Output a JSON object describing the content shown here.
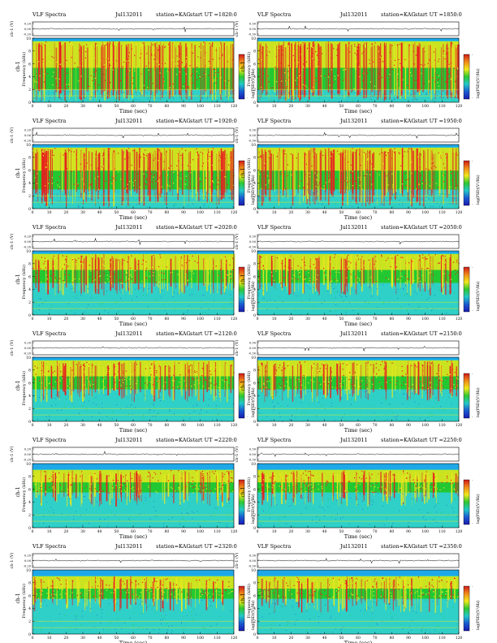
{
  "header": {
    "left_title": "VLF Spectra",
    "date_right_column": "Jul132011",
    "station": "station=KAG",
    "start_label": "start UT ="
  },
  "labels": {
    "waveform_ylabel": "ch-1 (V)",
    "spectrogram_ylabel_channel": "ch-1",
    "spectrogram_ylabel": "Frequency (kHz)",
    "xlabel": "Time (sec)",
    "colorbar_label": "log(PSD)(V²/Hz)"
  },
  "axes": {
    "time_ticks": [
      0,
      10,
      20,
      30,
      40,
      50,
      60,
      70,
      80,
      90,
      100,
      110,
      120
    ],
    "time_range": [
      0,
      120
    ],
    "freq_ticks": [
      0,
      2,
      4,
      6,
      8,
      10
    ],
    "freq_range": [
      0,
      10
    ],
    "waveform_ticks_left": [
      "0.20",
      "0.00",
      "-0.20"
    ],
    "waveform_ticks_right": [
      "0.30",
      "0.00",
      "-0.30"
    ],
    "colorbar_ticks": [
      "-",
      "-"
    ]
  },
  "chart_data": [
    {
      "type": "heatmap",
      "date": "Jul132011",
      "start_ut": "1820:0",
      "dominant_band_khz": [
        2,
        9.5
      ],
      "intensity": "high"
    },
    {
      "type": "heatmap",
      "date": "Jul132011",
      "start_ut": "1850:0",
      "dominant_band_khz": [
        2,
        9.5
      ],
      "intensity": "high"
    },
    {
      "type": "heatmap",
      "date": "Jul132011",
      "start_ut": "1920:0",
      "dominant_band_khz": [
        3,
        9.5
      ],
      "intensity": "high"
    },
    {
      "type": "heatmap",
      "date": "Jul132011",
      "start_ut": "1950:0",
      "dominant_band_khz": [
        3,
        9.5
      ],
      "intensity": "high"
    },
    {
      "type": "heatmap",
      "date": "Jul132011",
      "start_ut": "2020:0",
      "dominant_band_khz": [
        5,
        9.5
      ],
      "intensity": "medium"
    },
    {
      "type": "heatmap",
      "date": "Jul132011",
      "start_ut": "2050:0",
      "dominant_band_khz": [
        5,
        9.5
      ],
      "intensity": "medium"
    },
    {
      "type": "heatmap",
      "date": "Jul132011",
      "start_ut": "2120:0",
      "dominant_band_khz": [
        5,
        9.5
      ],
      "intensity": "medium"
    },
    {
      "type": "heatmap",
      "date": "Jul132011",
      "start_ut": "2150:0",
      "dominant_band_khz": [
        5,
        9.5
      ],
      "intensity": "medium"
    },
    {
      "type": "heatmap",
      "date": "Jul132011",
      "start_ut": "2220:0",
      "dominant_band_khz": [
        5.5,
        9
      ],
      "intensity": "medium"
    },
    {
      "type": "heatmap",
      "date": "Jul132011",
      "start_ut": "2250:0",
      "dominant_band_khz": [
        5.5,
        9
      ],
      "intensity": "medium"
    },
    {
      "type": "heatmap",
      "date": "Jul132011",
      "start_ut": "2320:0",
      "dominant_band_khz": [
        5.5,
        9
      ],
      "intensity": "low"
    },
    {
      "type": "heatmap",
      "date": "Jul132011",
      "start_ut": "2350:0",
      "dominant_band_khz": [
        5.5,
        9
      ],
      "intensity": "low"
    }
  ],
  "colors": {
    "background_noise": "#2fd0c8",
    "mid_level": "#22c832",
    "upper_level": "#e8e81e",
    "peak": "#e81e1e",
    "band_top": "#1ea8e8",
    "colorbar": [
      "#d01a1a",
      "#f08a1a",
      "#f0e81a",
      "#2ec832",
      "#22c8c8",
      "#1a5ad0",
      "#1a1ab0"
    ]
  }
}
